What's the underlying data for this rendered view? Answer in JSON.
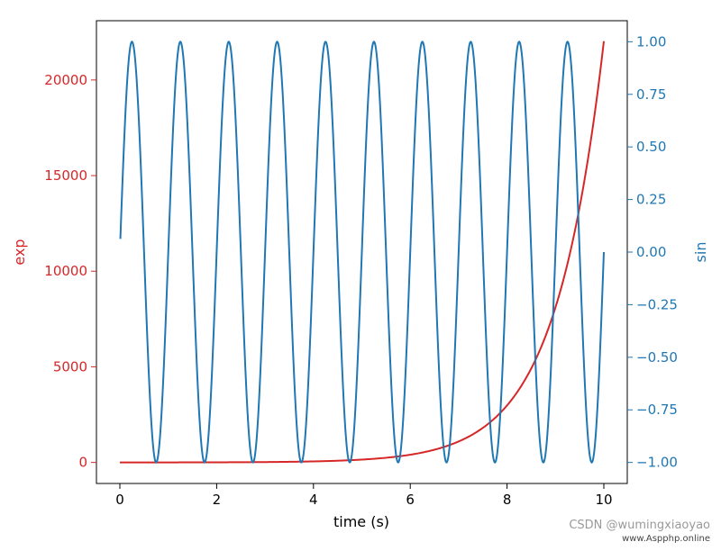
{
  "chart_data": {
    "type": "line",
    "xlabel": "time (s)",
    "x_range": [
      0,
      10
    ],
    "x_ticks": [
      "0",
      "2",
      "4",
      "6",
      "8",
      "10"
    ],
    "left_axis": {
      "label": "exp",
      "color": "#d62728",
      "ylim": [
        -1100,
        23100
      ],
      "ticks": [
        "0",
        "5000",
        "10000",
        "15000",
        "20000"
      ]
    },
    "right_axis": {
      "label": "sin",
      "color": "#1f77b4",
      "ylim": [
        -1.1,
        1.1
      ],
      "ticks": [
        "−1.00",
        "−0.75",
        "−0.50",
        "−0.25",
        "0.00",
        "0.25",
        "0.50",
        "0.75",
        "1.00"
      ]
    },
    "series": [
      {
        "axis": "left",
        "color": "#d62728",
        "x": [
          0,
          1,
          2,
          3,
          4,
          5,
          6,
          7,
          8,
          8.5,
          9,
          9.25,
          9.5,
          9.75,
          10
        ],
        "y": [
          1,
          2.72,
          7.39,
          20.09,
          54.6,
          148.4,
          403.4,
          1096.6,
          2981.0,
          4914.8,
          8103.1,
          10404.6,
          13359.7,
          17154.2,
          22026.5
        ]
      },
      {
        "axis": "right",
        "color": "#1f77b4",
        "x_range": [
          0.01,
          10
        ],
        "function": "sin(2*pi*t)",
        "y_start": 0.063,
        "y_end": -0.063
      }
    ],
    "grid": false,
    "legend": "none"
  },
  "watermark": {
    "text": "CSDN @wumingxiaoyao",
    "site": "www.Aspphp.online"
  }
}
